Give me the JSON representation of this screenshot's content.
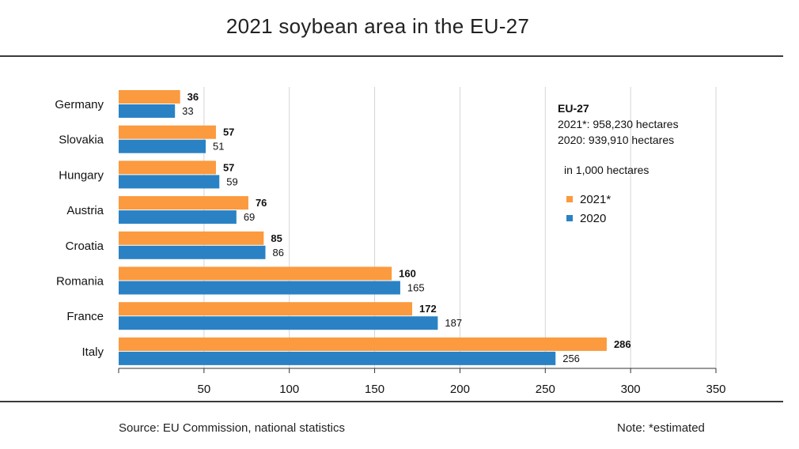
{
  "title": "2021 soybean area in the EU-27",
  "source": "Source:  EU Commission, national statistics",
  "note": "Note: *estimated",
  "info_box": {
    "heading": "EU-27",
    "line1": "2021*: 958,230 hectares",
    "line2": "2020: 939,910 hectares",
    "unit": "in 1,000  hectares"
  },
  "colors": {
    "series_2021": "#fb9a3e",
    "series_2020": "#2a82c5",
    "grid": "#d4d4d4",
    "axis": "#333333"
  },
  "chart_data": {
    "type": "bar",
    "orientation": "horizontal",
    "title": "2021 soybean area in the EU-27",
    "categories": [
      "Germany",
      "Slovakia",
      "Hungary",
      "Austria",
      "Croatia",
      "Romania",
      "France",
      "Italy"
    ],
    "series": [
      {
        "name": "2021*",
        "values": [
          36,
          57,
          57,
          76,
          85,
          160,
          172,
          286
        ],
        "color": "#fb9a3e",
        "label_bold": true
      },
      {
        "name": "2020",
        "values": [
          33,
          51,
          59,
          69,
          86,
          165,
          187,
          256
        ],
        "color": "#2a82c5",
        "label_bold": false
      }
    ],
    "xlim": [
      0,
      350
    ],
    "xticks": [
      50,
      100,
      150,
      200,
      250,
      300,
      350
    ],
    "grid": true,
    "legend_position": "right"
  }
}
